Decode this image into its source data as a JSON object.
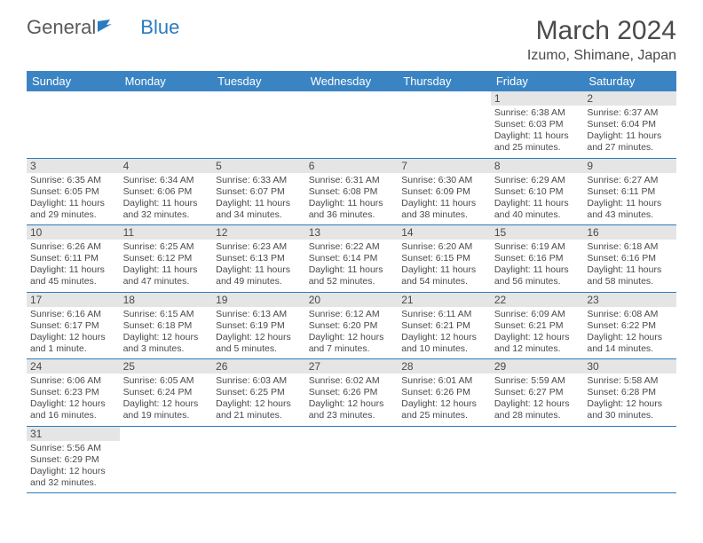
{
  "logo": {
    "text1": "General",
    "text2": "Blue"
  },
  "title": "March 2024",
  "location": "Izumo, Shimane, Japan",
  "dayHeaders": [
    "Sunday",
    "Monday",
    "Tuesday",
    "Wednesday",
    "Thursday",
    "Friday",
    "Saturday"
  ],
  "colors": {
    "headerBg": "#3b84c4",
    "border": "#2b7bbf",
    "dayNumBg": "#e5e5e5",
    "text": "#4a4a4a"
  },
  "startOffset": 5,
  "days": [
    {
      "n": 1,
      "sr": "6:38 AM",
      "ss": "6:03 PM",
      "dl": "11 hours and 25 minutes."
    },
    {
      "n": 2,
      "sr": "6:37 AM",
      "ss": "6:04 PM",
      "dl": "11 hours and 27 minutes."
    },
    {
      "n": 3,
      "sr": "6:35 AM",
      "ss": "6:05 PM",
      "dl": "11 hours and 29 minutes."
    },
    {
      "n": 4,
      "sr": "6:34 AM",
      "ss": "6:06 PM",
      "dl": "11 hours and 32 minutes."
    },
    {
      "n": 5,
      "sr": "6:33 AM",
      "ss": "6:07 PM",
      "dl": "11 hours and 34 minutes."
    },
    {
      "n": 6,
      "sr": "6:31 AM",
      "ss": "6:08 PM",
      "dl": "11 hours and 36 minutes."
    },
    {
      "n": 7,
      "sr": "6:30 AM",
      "ss": "6:09 PM",
      "dl": "11 hours and 38 minutes."
    },
    {
      "n": 8,
      "sr": "6:29 AM",
      "ss": "6:10 PM",
      "dl": "11 hours and 40 minutes."
    },
    {
      "n": 9,
      "sr": "6:27 AM",
      "ss": "6:11 PM",
      "dl": "11 hours and 43 minutes."
    },
    {
      "n": 10,
      "sr": "6:26 AM",
      "ss": "6:11 PM",
      "dl": "11 hours and 45 minutes."
    },
    {
      "n": 11,
      "sr": "6:25 AM",
      "ss": "6:12 PM",
      "dl": "11 hours and 47 minutes."
    },
    {
      "n": 12,
      "sr": "6:23 AM",
      "ss": "6:13 PM",
      "dl": "11 hours and 49 minutes."
    },
    {
      "n": 13,
      "sr": "6:22 AM",
      "ss": "6:14 PM",
      "dl": "11 hours and 52 minutes."
    },
    {
      "n": 14,
      "sr": "6:20 AM",
      "ss": "6:15 PM",
      "dl": "11 hours and 54 minutes."
    },
    {
      "n": 15,
      "sr": "6:19 AM",
      "ss": "6:16 PM",
      "dl": "11 hours and 56 minutes."
    },
    {
      "n": 16,
      "sr": "6:18 AM",
      "ss": "6:16 PM",
      "dl": "11 hours and 58 minutes."
    },
    {
      "n": 17,
      "sr": "6:16 AM",
      "ss": "6:17 PM",
      "dl": "12 hours and 1 minute."
    },
    {
      "n": 18,
      "sr": "6:15 AM",
      "ss": "6:18 PM",
      "dl": "12 hours and 3 minutes."
    },
    {
      "n": 19,
      "sr": "6:13 AM",
      "ss": "6:19 PM",
      "dl": "12 hours and 5 minutes."
    },
    {
      "n": 20,
      "sr": "6:12 AM",
      "ss": "6:20 PM",
      "dl": "12 hours and 7 minutes."
    },
    {
      "n": 21,
      "sr": "6:11 AM",
      "ss": "6:21 PM",
      "dl": "12 hours and 10 minutes."
    },
    {
      "n": 22,
      "sr": "6:09 AM",
      "ss": "6:21 PM",
      "dl": "12 hours and 12 minutes."
    },
    {
      "n": 23,
      "sr": "6:08 AM",
      "ss": "6:22 PM",
      "dl": "12 hours and 14 minutes."
    },
    {
      "n": 24,
      "sr": "6:06 AM",
      "ss": "6:23 PM",
      "dl": "12 hours and 16 minutes."
    },
    {
      "n": 25,
      "sr": "6:05 AM",
      "ss": "6:24 PM",
      "dl": "12 hours and 19 minutes."
    },
    {
      "n": 26,
      "sr": "6:03 AM",
      "ss": "6:25 PM",
      "dl": "12 hours and 21 minutes."
    },
    {
      "n": 27,
      "sr": "6:02 AM",
      "ss": "6:26 PM",
      "dl": "12 hours and 23 minutes."
    },
    {
      "n": 28,
      "sr": "6:01 AM",
      "ss": "6:26 PM",
      "dl": "12 hours and 25 minutes."
    },
    {
      "n": 29,
      "sr": "5:59 AM",
      "ss": "6:27 PM",
      "dl": "12 hours and 28 minutes."
    },
    {
      "n": 30,
      "sr": "5:58 AM",
      "ss": "6:28 PM",
      "dl": "12 hours and 30 minutes."
    },
    {
      "n": 31,
      "sr": "5:56 AM",
      "ss": "6:29 PM",
      "dl": "12 hours and 32 minutes."
    }
  ],
  "labels": {
    "sunrise": "Sunrise:",
    "sunset": "Sunset:",
    "daylight": "Daylight:"
  }
}
